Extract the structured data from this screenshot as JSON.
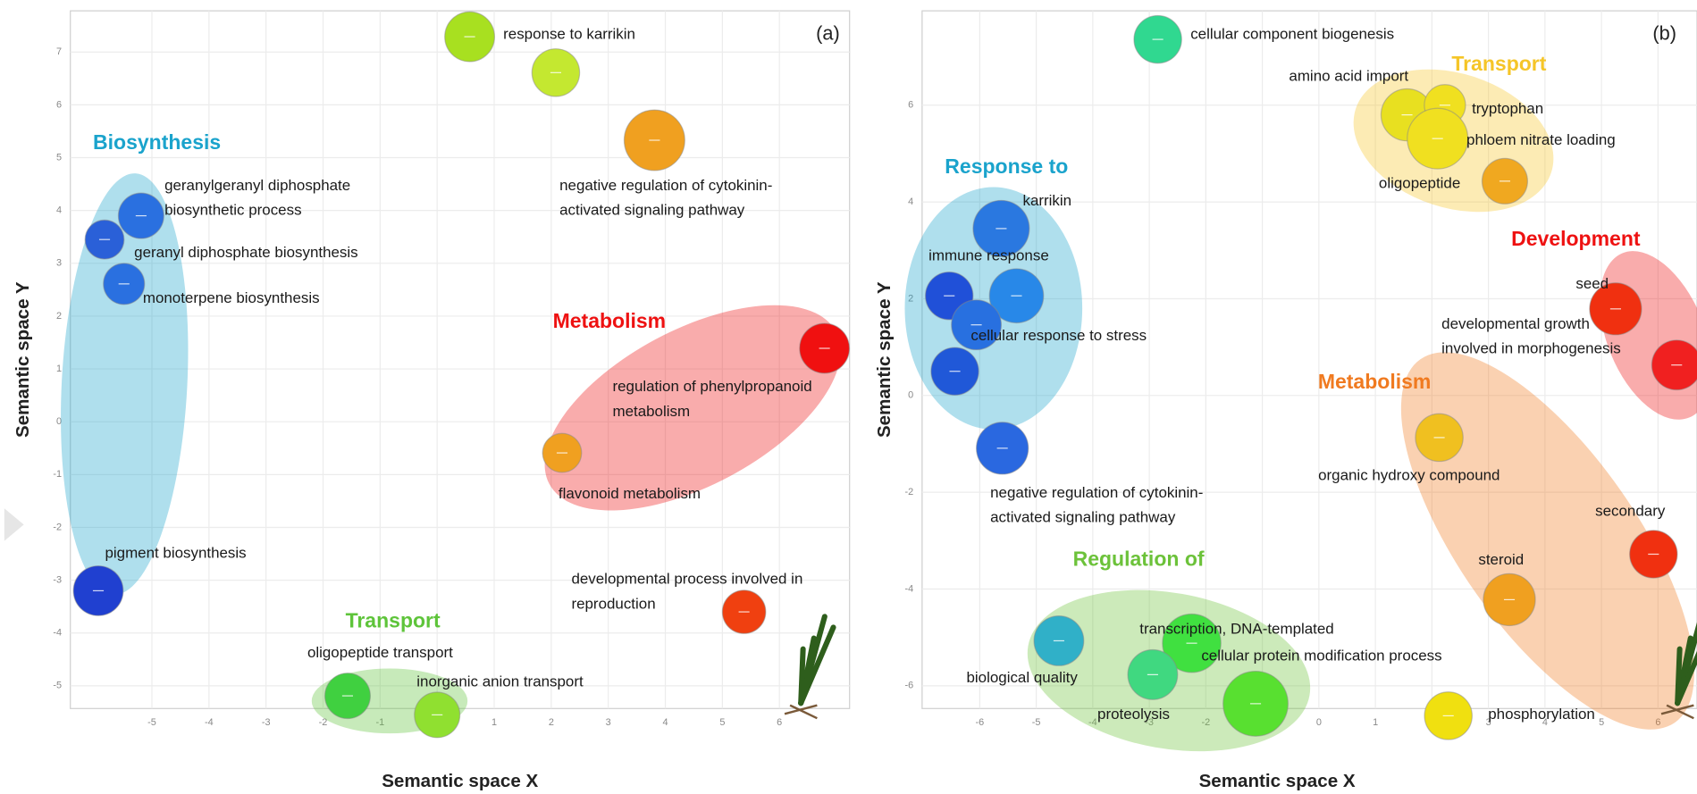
{
  "chart_data": [
    {
      "type": "scatter",
      "panel_label": "(a)",
      "xlabel": "Semantic space X",
      "ylabel": "Semantic space Y",
      "xlim": [
        -6.43,
        7.23
      ],
      "ylim": [
        -5.43,
        7.78
      ],
      "xticks": [
        -5,
        -4,
        -3,
        -2,
        -1,
        0,
        1,
        2,
        3,
        4,
        5,
        6
      ],
      "yticks": [
        -5,
        -4,
        -3,
        -2,
        -1,
        0,
        1,
        2,
        3,
        4,
        5,
        6,
        7
      ],
      "grid": true,
      "x": [
        0.57,
        2.08,
        3.81,
        -5.19,
        -5.83,
        -5.49,
        6.79,
        2.19,
        -5.94,
        5.38,
        -1.57,
        0.0
      ],
      "values": [
        7.29,
        6.61,
        5.33,
        3.9,
        3.45,
        2.61,
        1.39,
        -0.59,
        -3.2,
        -3.6,
        -5.19,
        -5.55
      ],
      "sizes": [
        23,
        22,
        28,
        21,
        18,
        19,
        23,
        18,
        23,
        20,
        21,
        21
      ],
      "colors": [
        "#a8e020",
        "#c4e830",
        "#f0a020",
        "#2a70e0",
        "#2a60d8",
        "#2a70e0",
        "#f01010",
        "#f0a020",
        "#2040d0",
        "#f04010",
        "#40d040",
        "#90e030"
      ],
      "labels": [
        [
          "response to karrikin"
        ],
        null,
        [
          "negative regulation of cytokinin-",
          "activated signaling pathway"
        ],
        [
          "geranylgeranyl diphosphate",
          "biosynthetic process"
        ],
        [
          "geranyl diphosphate biosynthesis"
        ],
        [
          "monoterpene biosynthesis"
        ],
        [
          "regulation of phenylpropanoid",
          "metabolism"
        ],
        [
          "flavonoid metabolism"
        ],
        [
          "pigment biosynthesis"
        ],
        [
          "developmental process involved in",
          "reproduction"
        ],
        [
          "oligopeptide transport"
        ],
        [
          "inorganic anion transport"
        ]
      ],
      "groups": [
        {
          "text": "Biosynthesis",
          "color": "#1aa3cc"
        },
        {
          "text": "Metabolism",
          "color": "#ee1111"
        },
        {
          "text": "Transport",
          "color": "#5ec43a"
        }
      ]
    },
    {
      "type": "scatter",
      "panel_label": "(b)",
      "xlabel": "Semantic space X",
      "ylabel": "Semantic space Y",
      "xlim": [
        -7.02,
        6.69
      ],
      "ylim": [
        -6.47,
        7.95
      ],
      "xticks": [
        -6,
        -5,
        -4,
        -3,
        -2,
        -1,
        0,
        1,
        2,
        3,
        4,
        5,
        6
      ],
      "yticks": [
        -6,
        -4,
        -2,
        0,
        2,
        4,
        6
      ],
      "grid": true,
      "x": [
        -2.85,
        1.56,
        2.23,
        2.1,
        3.29,
        -5.62,
        -6.54,
        -5.35,
        -6.06,
        -6.44,
        -5.6,
        5.25,
        6.33,
        2.13,
        5.92,
        3.37,
        -4.6,
        -2.25,
        -2.94,
        -1.12,
        2.29
      ],
      "values": [
        7.36,
        5.8,
        6.0,
        5.31,
        4.43,
        3.45,
        2.06,
        2.06,
        1.46,
        0.5,
        -1.09,
        1.79,
        0.63,
        -0.87,
        -3.28,
        -4.22,
        -5.07,
        -5.12,
        -5.77,
        -6.37,
        -6.62
      ],
      "sizes": [
        22,
        24,
        19,
        28,
        21,
        26,
        22,
        25,
        23,
        22,
        24,
        24,
        23,
        22,
        22,
        24,
        23,
        27,
        23,
        30,
        22
      ],
      "colors": [
        "#30d890",
        "#e8e020",
        "#f0e020",
        "#f0e020",
        "#f0a820",
        "#2a78e0",
        "#2050d8",
        "#2888e8",
        "#2870e0",
        "#2058d8",
        "#2a68e0",
        "#f03010",
        "#f02020",
        "#f0c020",
        "#f03010",
        "#f0a020",
        "#30b0c8",
        "#40e040",
        "#40d880",
        "#58e030",
        "#f0e010"
      ],
      "labels": [
        [
          "cellular component biogenesis"
        ],
        [
          "amino acid import"
        ],
        [
          "tryptophan"
        ],
        [
          "phloem nitrate loading"
        ],
        [
          "oligopeptide"
        ],
        [
          "karrikin"
        ],
        [
          "immune response"
        ],
        null,
        [
          "cellular response to stress"
        ],
        null,
        [
          "negative regulation of cytokinin-",
          "activated signaling pathway"
        ],
        [
          "seed"
        ],
        [
          "developmental growth",
          "involved in morphogenesis"
        ],
        [
          "organic hydroxy compound"
        ],
        [
          "secondary"
        ],
        [
          "steroid"
        ],
        [
          "biological quality"
        ],
        [
          "transcription, DNA-templated"
        ],
        [
          "proteolysis"
        ],
        [
          "cellular protein modification process"
        ],
        [
          "phosphorylation"
        ]
      ],
      "groups": [
        {
          "text": "Transport",
          "color": "#f5c528"
        },
        {
          "text": "Response to",
          "color": "#1aa3cc"
        },
        {
          "text": "Development",
          "color": "#ee1111"
        },
        {
          "text": "Metabolism",
          "color": "#f07a20"
        },
        {
          "text": "Regulation of",
          "color": "#6cc23a"
        }
      ]
    }
  ]
}
